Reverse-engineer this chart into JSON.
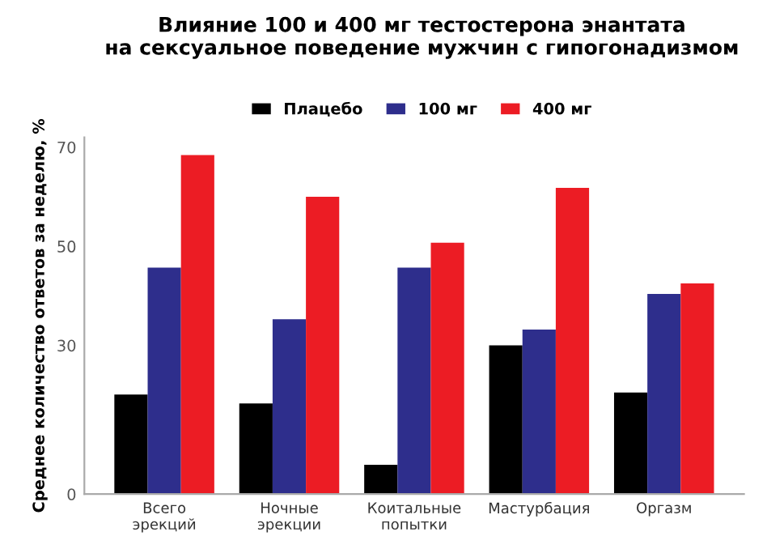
{
  "chart_data": {
    "type": "bar",
    "title": "Влияние 100 и 400 мг тестостерона энантата\nна сексуальное поведение мужчин с гипогонадизмом",
    "ylabel": "Среднее количество ответов за неделю, %",
    "categories": [
      "Всего\nэрекций",
      "Ночные\nэрекции",
      "Коитальные\nпопытки",
      "Мастурбация",
      "Оргазм"
    ],
    "series": [
      {
        "name": "Плацебо",
        "color": "#000000",
        "values": [
          20.1,
          18.3,
          5.9,
          30,
          20.5
        ]
      },
      {
        "name": "100 мг",
        "color": "#2e2e8c",
        "values": [
          45.7,
          35.3,
          45.7,
          33.2,
          40.4
        ]
      },
      {
        "name": "400 мг",
        "color": "#ec1c24",
        "values": [
          68.4,
          60,
          50.7,
          61.8,
          42.5
        ]
      }
    ],
    "ylim": [
      0,
      72
    ],
    "yticks": [
      0,
      30,
      50,
      70
    ],
    "grid": false,
    "legend": "top"
  }
}
